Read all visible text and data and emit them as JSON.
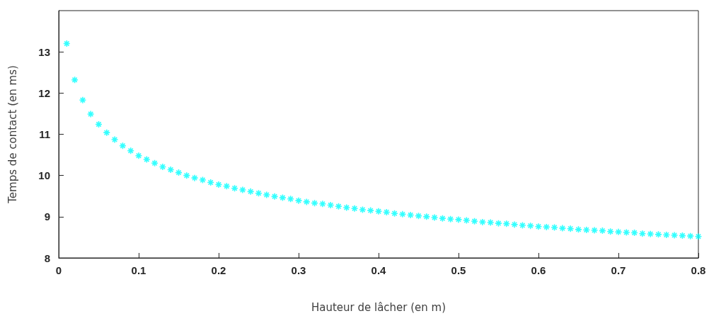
{
  "chart_data": {
    "type": "scatter",
    "xlabel": "Hauteur de lâcher (en m)",
    "ylabel": "Temps de contact (en ms)",
    "x": [
      0.01,
      0.02,
      0.03,
      0.04,
      0.05,
      0.06,
      0.07,
      0.08,
      0.09,
      0.1,
      0.11,
      0.12,
      0.13,
      0.14,
      0.15,
      0.16,
      0.17,
      0.18,
      0.19,
      0.2,
      0.21,
      0.22,
      0.23,
      0.24,
      0.25,
      0.26,
      0.27,
      0.28,
      0.29,
      0.3,
      0.31,
      0.32,
      0.33,
      0.34,
      0.35,
      0.36,
      0.37,
      0.38,
      0.39,
      0.4,
      0.41,
      0.42,
      0.43,
      0.44,
      0.45,
      0.46,
      0.47,
      0.48,
      0.49,
      0.5,
      0.51,
      0.52,
      0.53,
      0.54,
      0.55,
      0.56,
      0.57,
      0.58,
      0.59,
      0.6,
      0.61,
      0.62,
      0.63,
      0.64,
      0.65,
      0.66,
      0.67,
      0.68,
      0.69,
      0.7,
      0.71,
      0.72,
      0.73,
      0.74,
      0.75,
      0.76,
      0.77,
      0.78,
      0.79,
      0.8
    ],
    "series": [
      {
        "color": "#00ffff",
        "values": [
          13.2,
          12.32,
          11.83,
          11.49,
          11.24,
          11.04,
          10.87,
          10.72,
          10.6,
          10.48,
          10.39,
          10.3,
          10.21,
          10.14,
          10.07,
          10.0,
          9.94,
          9.89,
          9.83,
          9.78,
          9.74,
          9.69,
          9.65,
          9.61,
          9.57,
          9.53,
          9.49,
          9.46,
          9.43,
          9.39,
          9.36,
          9.33,
          9.31,
          9.28,
          9.25,
          9.22,
          9.2,
          9.17,
          9.15,
          9.13,
          9.11,
          9.08,
          9.06,
          9.04,
          9.02,
          9.0,
          8.98,
          8.96,
          8.94,
          8.93,
          8.91,
          8.89,
          8.87,
          8.86,
          8.84,
          8.83,
          8.81,
          8.79,
          8.78,
          8.76,
          8.75,
          8.74,
          8.72,
          8.71,
          8.69,
          8.68,
          8.67,
          8.66,
          8.64,
          8.63,
          8.62,
          8.61,
          8.59,
          8.58,
          8.57,
          8.56,
          8.55,
          8.54,
          8.53,
          8.52
        ]
      }
    ],
    "xlim": [
      0,
      0.8
    ],
    "xticks": [
      0,
      0.1,
      0.2,
      0.3,
      0.4,
      0.5,
      0.6,
      0.7,
      0.8
    ],
    "ylim": [
      8,
      14
    ],
    "yticks": [
      8,
      9,
      10,
      11,
      12,
      13
    ],
    "grid": false,
    "marker": "cross"
  }
}
